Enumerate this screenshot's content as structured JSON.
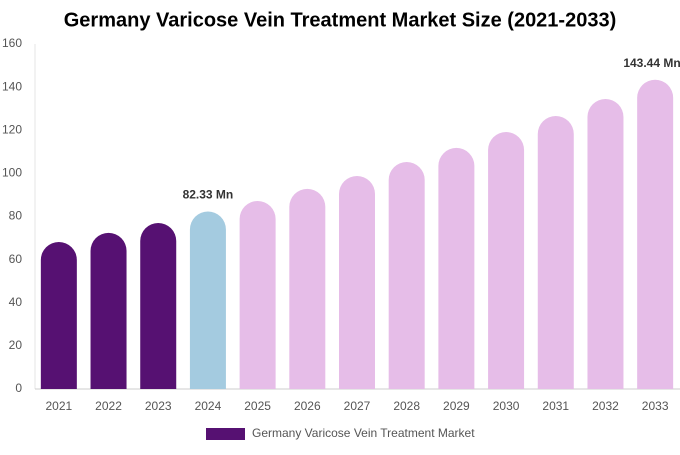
{
  "chart_data": {
    "type": "bar",
    "title": "Germany Varicose Vein Treatment Market Size (2021-2033)",
    "categories": [
      "2021",
      "2022",
      "2023",
      "2024",
      "2025",
      "2026",
      "2027",
      "2028",
      "2029",
      "2030",
      "2031",
      "2032",
      "2033"
    ],
    "series": [
      {
        "name": "Germany Varicose Vein Treatment Market",
        "color": "#561172",
        "values": [
          68.2,
          72.4,
          77,
          82.33,
          87.2,
          92.8,
          98.8,
          105.3,
          111.8,
          119.2,
          126.6,
          134.5,
          143.44
        ],
        "point_colors": [
          "#561172",
          "#561172",
          "#561172",
          "#a4cbe0",
          "#e6bde8",
          "#e6bde8",
          "#e6bde8",
          "#e6bde8",
          "#e6bde8",
          "#e6bde8",
          "#e6bde8",
          "#e6bde8",
          "#e6bde8"
        ],
        "value_labels": [
          null,
          null,
          null,
          "82.33 Mn",
          null,
          null,
          null,
          null,
          null,
          null,
          null,
          null,
          "143.44 Mn"
        ]
      }
    ],
    "ylim": [
      0,
      160
    ],
    "yticks": [
      0,
      20,
      40,
      60,
      80,
      100,
      120,
      140,
      160
    ],
    "grid": false
  }
}
